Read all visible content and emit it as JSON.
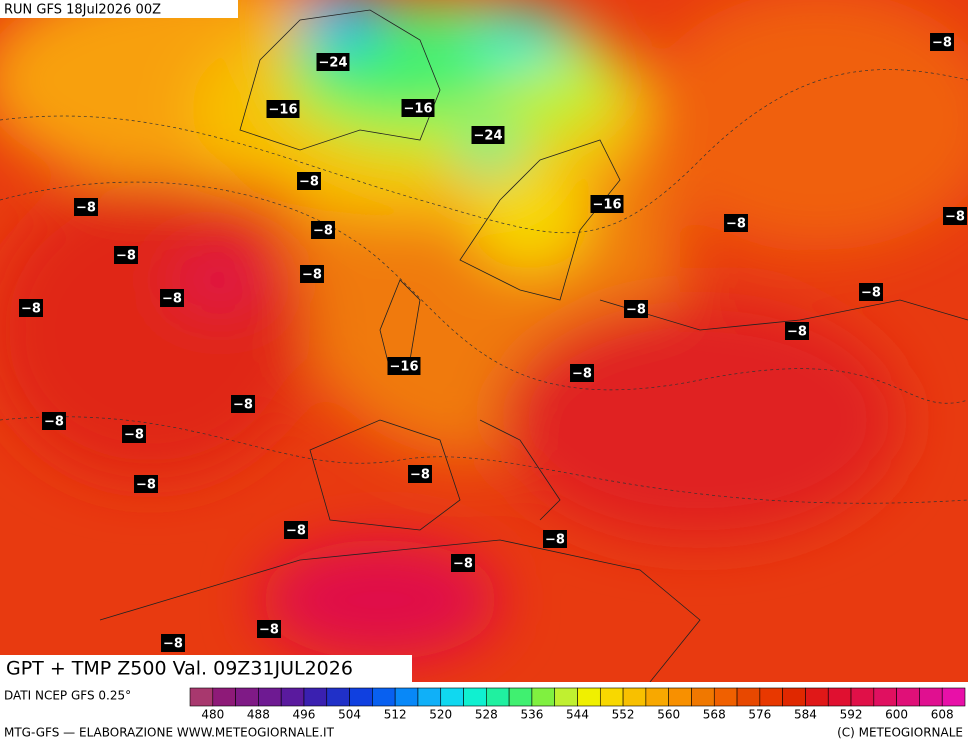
{
  "header": {
    "run": "RUN GFS 18Jul2026 00Z"
  },
  "title": "GPT + TMP Z500 Val. 09Z31JUL2026",
  "source": "DATI NCEP GFS 0.25°",
  "credit_left": "MTG-GFS — ELABORAZIONE WWW.METEOGIORNALE.IT",
  "credit_right": "(C) METEOGIORNALE",
  "colorbar": {
    "labels": [
      "480",
      "488",
      "496",
      "504",
      "512",
      "520",
      "528",
      "536",
      "544",
      "552",
      "560",
      "568",
      "576",
      "584",
      "592",
      "600",
      "608"
    ],
    "colors": [
      "#a8386e",
      "#8e1a78",
      "#7f1a86",
      "#6e1a92",
      "#5a1a9e",
      "#3a20b0",
      "#2030c8",
      "#1040e0",
      "#0860f0",
      "#0888f8",
      "#10b0f8",
      "#10d8f0",
      "#10f0d0",
      "#20f0a0",
      "#40f070",
      "#80f040",
      "#c0f030",
      "#f0f000",
      "#f8d800",
      "#f8c000",
      "#f8a800",
      "#f89000",
      "#f07800",
      "#f06000",
      "#e84800",
      "#e83800",
      "#e02800",
      "#e01818",
      "#e01030",
      "#e01048",
      "#e01060",
      "#e01078",
      "#e01090",
      "#e810a8"
    ]
  },
  "map": {
    "labels": [
      "−24",
      "−16",
      "−16",
      "−24",
      "−8",
      "−8",
      "−16",
      "−8",
      "−8",
      "−8",
      "−8",
      "−8",
      "−8",
      "−8",
      "−8",
      "−8",
      "−8",
      "−8",
      "−16",
      "−8",
      "−8",
      "−8",
      "−8",
      "−8",
      "−8",
      "−8",
      "−8",
      "−8",
      "−8",
      "−8"
    ]
  }
}
